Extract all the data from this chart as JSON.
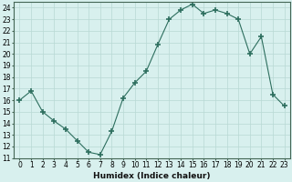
{
  "xlabel": "Humidex (Indice chaleur)",
  "ylabel": "",
  "x": [
    0,
    1,
    2,
    3,
    4,
    5,
    6,
    7,
    8,
    9,
    10,
    11,
    12,
    13,
    14,
    15,
    16,
    17,
    18,
    19,
    20,
    21,
    22,
    23
  ],
  "y": [
    16,
    16.8,
    15,
    14.2,
    13.5,
    12.5,
    11.5,
    11.3,
    13.3,
    16.2,
    17.5,
    18.5,
    20.8,
    23,
    23.8,
    24.3,
    23.5,
    23.8,
    23.5,
    23,
    20,
    21.5,
    16.5,
    15.5
  ],
  "line_color": "#2d6e5e",
  "marker": "+",
  "marker_size": 4,
  "bg_color": "#d8f0ee",
  "grid_color": "#b8d8d4",
  "ylim": [
    11,
    24.5
  ],
  "yticks": [
    11,
    12,
    13,
    14,
    15,
    16,
    17,
    18,
    19,
    20,
    21,
    22,
    23,
    24
  ],
  "xticks": [
    0,
    1,
    2,
    3,
    4,
    5,
    6,
    7,
    8,
    9,
    10,
    11,
    12,
    13,
    14,
    15,
    16,
    17,
    18,
    19,
    20,
    21,
    22,
    23
  ],
  "tick_fontsize": 5.5,
  "label_fontsize": 6.5
}
